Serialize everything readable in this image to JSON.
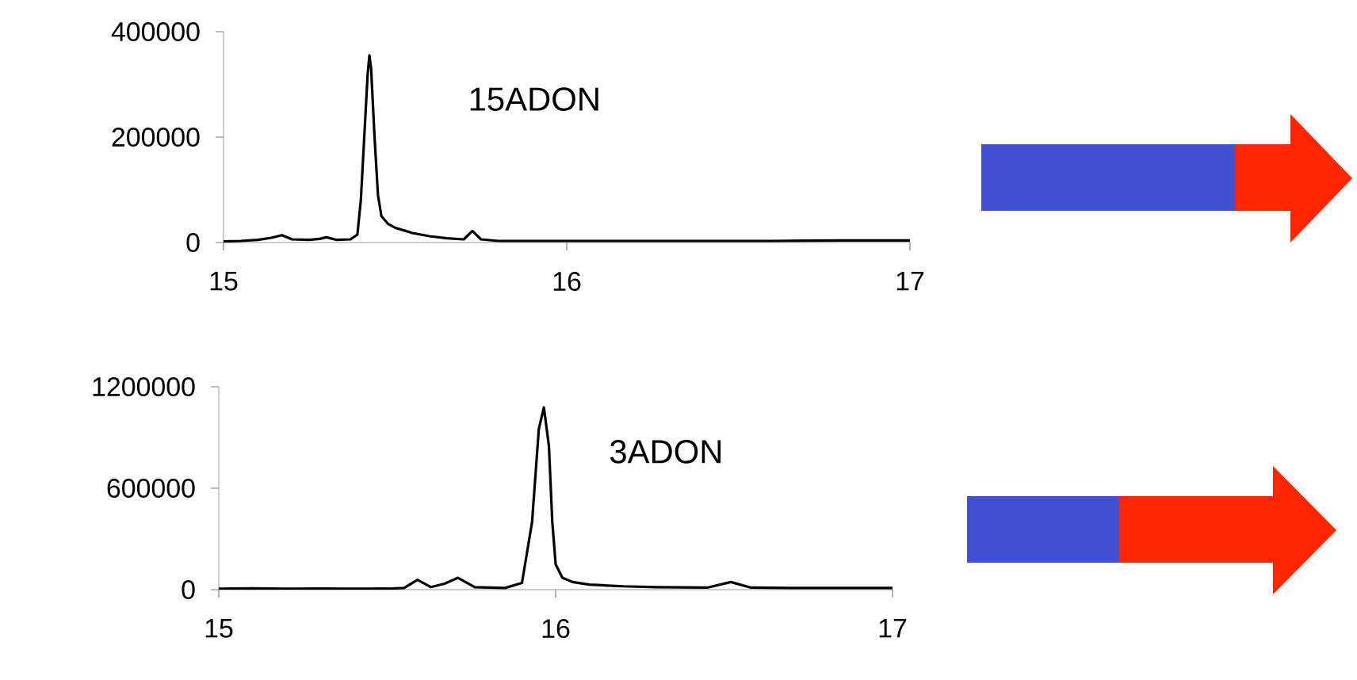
{
  "chart_data": [
    {
      "type": "line",
      "xlim": [
        15,
        17
      ],
      "xticks": [
        15,
        16,
        17
      ],
      "ylim": [
        0,
        400000
      ],
      "yticks": [
        0,
        200000,
        400000
      ],
      "marker": "none",
      "line_style": "solid",
      "legend": false,
      "grid": false,
      "series": [
        {
          "name": "15ADON",
          "color": "#000000",
          "x": [
            15.0,
            15.05,
            15.1,
            15.14,
            15.17,
            15.2,
            15.25,
            15.28,
            15.3,
            15.33,
            15.37,
            15.39,
            15.4,
            15.41,
            15.42,
            15.425,
            15.43,
            15.44,
            15.45,
            15.46,
            15.48,
            15.5,
            15.55,
            15.6,
            15.65,
            15.7,
            15.725,
            15.75,
            15.8,
            15.9,
            16.0,
            16.2,
            16.4,
            16.6,
            16.8,
            17.0
          ],
          "values": [
            2000,
            3000,
            5000,
            9000,
            14000,
            6000,
            5000,
            7000,
            10000,
            5000,
            6000,
            15000,
            80000,
            200000,
            320000,
            355000,
            330000,
            200000,
            90000,
            50000,
            35000,
            28000,
            18000,
            12000,
            8000,
            6000,
            22000,
            6000,
            3000,
            3000,
            3000,
            3000,
            3000,
            3000,
            4000,
            4000
          ]
        }
      ]
    },
    {
      "type": "line",
      "xlim": [
        15,
        17
      ],
      "xticks": [
        15,
        16,
        17
      ],
      "ylim": [
        0,
        1200000
      ],
      "yticks": [
        0,
        600000,
        1200000
      ],
      "marker": "none",
      "line_style": "solid",
      "legend": false,
      "grid": false,
      "series": [
        {
          "name": "3ADON",
          "color": "#000000",
          "x": [
            15.0,
            15.1,
            15.2,
            15.3,
            15.4,
            15.5,
            15.55,
            15.59,
            15.63,
            15.67,
            15.71,
            15.76,
            15.85,
            15.9,
            15.93,
            15.95,
            15.965,
            15.98,
            15.99,
            16.0,
            16.02,
            16.05,
            16.1,
            16.2,
            16.3,
            16.45,
            16.52,
            16.58,
            16.7,
            16.85,
            17.0
          ],
          "values": [
            5000,
            8000,
            5000,
            6000,
            5000,
            6000,
            10000,
            58000,
            15000,
            35000,
            70000,
            15000,
            10000,
            40000,
            400000,
            950000,
            1078000,
            850000,
            400000,
            150000,
            70000,
            45000,
            30000,
            20000,
            15000,
            12000,
            45000,
            12000,
            10000,
            10000,
            10000
          ]
        }
      ]
    }
  ]
}
